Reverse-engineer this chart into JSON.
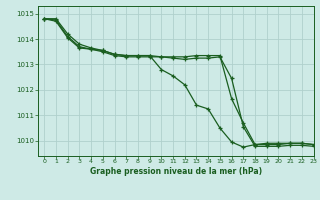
{
  "title": "Graphe pression niveau de la mer (hPa)",
  "bg_color": "#ceeae6",
  "line_color": "#1a5e20",
  "grid_color": "#b0d0cc",
  "xlim": [
    -0.5,
    23
  ],
  "ylim": [
    1009.4,
    1015.3
  ],
  "yticks": [
    1010,
    1011,
    1012,
    1013,
    1014,
    1015
  ],
  "xticks": [
    0,
    1,
    2,
    3,
    4,
    5,
    6,
    7,
    8,
    9,
    10,
    11,
    12,
    13,
    14,
    15,
    16,
    17,
    18,
    19,
    20,
    21,
    22,
    23
  ],
  "series": [
    [
      1014.8,
      1014.8,
      1014.2,
      1013.8,
      1013.65,
      1013.55,
      1013.4,
      1013.35,
      1013.35,
      1013.35,
      1012.8,
      1012.55,
      1012.2,
      1011.4,
      1011.25,
      1010.5,
      1009.95,
      1009.75,
      1009.85,
      1009.9,
      1009.9,
      1009.9,
      1009.9,
      1009.85
    ],
    [
      1014.8,
      1014.75,
      1014.1,
      1013.7,
      1013.6,
      1013.55,
      1013.4,
      1013.35,
      1013.35,
      1013.35,
      1013.3,
      1013.3,
      1013.3,
      1013.35,
      1013.35,
      1013.35,
      1011.65,
      1010.7,
      1009.85,
      1009.85,
      1009.85,
      1009.9,
      1009.9,
      1009.85
    ],
    [
      1014.8,
      1014.7,
      1014.05,
      1013.65,
      1013.6,
      1013.5,
      1013.35,
      1013.3,
      1013.3,
      1013.3,
      1013.3,
      1013.25,
      1013.2,
      1013.25,
      1013.25,
      1013.3,
      1012.45,
      1010.55,
      1009.78,
      1009.78,
      1009.78,
      1009.82,
      1009.82,
      1009.78
    ]
  ]
}
